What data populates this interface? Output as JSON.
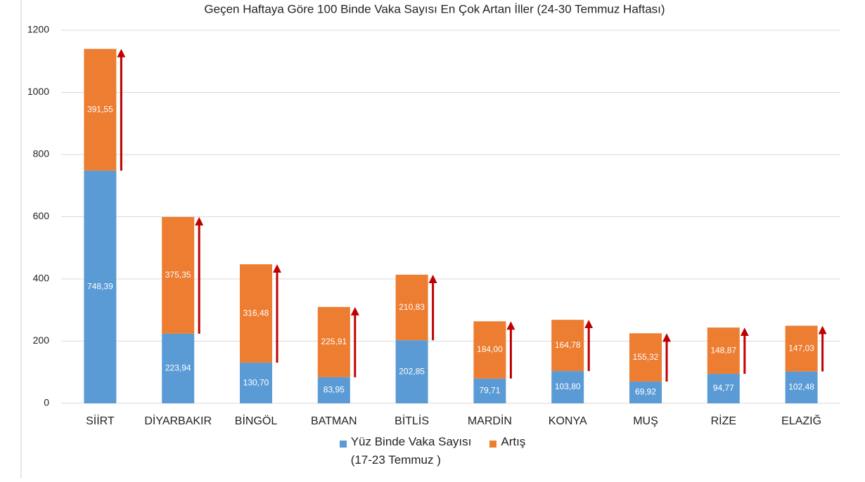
{
  "chart_data": {
    "type": "stacked_bar",
    "title": "Geçen Haftaya Göre 100 Binde Vaka Sayısı En Çok Artan İller (24-30 Temmuz Haftası)",
    "categories": [
      "SİİRT",
      "DİYARBAKIR",
      "BİNGÖL",
      "BATMAN",
      "BİTLİS",
      "MARDİN",
      "KONYA",
      "MUŞ",
      "RİZE",
      "ELAZIĞ"
    ],
    "series": [
      {
        "name": "Yüz Binde Vaka Sayısı\n(17-23 Temmuz )",
        "color": "#5b9bd5",
        "values": [
          748.39,
          223.94,
          130.7,
          83.95,
          202.85,
          79.71,
          103.8,
          69.92,
          94.77,
          102.48
        ],
        "value_labels": [
          "748,39",
          "223,94",
          "130,70",
          "83,95",
          "202,85",
          "79,71",
          "103,80",
          "69,92",
          "94,77",
          "102,48"
        ]
      },
      {
        "name": "Artış",
        "color": "#ed7d31",
        "values": [
          391.55,
          375.35,
          316.48,
          225.91,
          210.83,
          184.0,
          164.78,
          155.32,
          148.87,
          147.03
        ],
        "value_labels": [
          "391,55",
          "375,35",
          "316,48",
          "225,91",
          "210,83",
          "184,00",
          "164,78",
          "155,32",
          "148,87",
          "147,03"
        ]
      }
    ],
    "ylim": [
      0,
      1200
    ],
    "yticks": [
      0,
      200,
      400,
      600,
      800,
      1000,
      1200
    ],
    "grid": true
  }
}
